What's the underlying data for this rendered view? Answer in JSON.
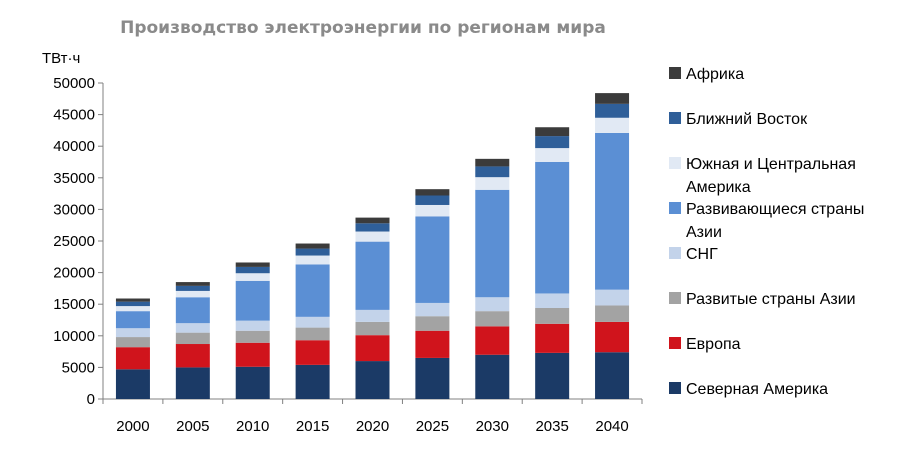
{
  "chart_data": {
    "type": "bar",
    "stacked": true,
    "title": "Производство электроэнергии по регионам мира",
    "ylabel": "ТВт·ч",
    "xlabel": "",
    "ylim": [
      0,
      50000
    ],
    "yticks": [
      0,
      5000,
      10000,
      15000,
      20000,
      25000,
      30000,
      35000,
      40000,
      45000,
      50000
    ],
    "grid": false,
    "legend_position": "right",
    "categories": [
      "2000",
      "2005",
      "2010",
      "2015",
      "2020",
      "2025",
      "2030",
      "2035",
      "2040"
    ],
    "series": [
      {
        "name": "Северная Америка",
        "color": "#1b3a66",
        "values": [
          4700,
          5000,
          5100,
          5400,
          6000,
          6500,
          7000,
          7300,
          7400
        ]
      },
      {
        "name": "Европа",
        "color": "#d0141c",
        "values": [
          3500,
          3700,
          3800,
          3900,
          4100,
          4300,
          4500,
          4600,
          4800
        ]
      },
      {
        "name": "Развитые страны Азии",
        "color": "#a3a3a3",
        "values": [
          1600,
          1800,
          1900,
          2000,
          2100,
          2300,
          2400,
          2500,
          2600
        ]
      },
      {
        "name": "СНГ",
        "color": "#c3d3ea",
        "values": [
          1400,
          1500,
          1600,
          1700,
          1900,
          2100,
          2200,
          2300,
          2500
        ]
      },
      {
        "name": "Развивающиеся страны Азии",
        "color": "#5b8fd4",
        "values": [
          2700,
          4100,
          6300,
          8300,
          10800,
          13700,
          17000,
          20800,
          24800
        ]
      },
      {
        "name": "Южная и Центральная Америка",
        "color": "#e1e9f4",
        "values": [
          800,
          1000,
          1200,
          1400,
          1600,
          1800,
          2000,
          2200,
          2400
        ]
      },
      {
        "name": "Ближний Восток",
        "color": "#2f5f99",
        "values": [
          700,
          800,
          1000,
          1100,
          1300,
          1500,
          1700,
          1900,
          2200
        ]
      },
      {
        "name": "Африка",
        "color": "#3b3b3b",
        "values": [
          500,
          600,
          700,
          800,
          900,
          1000,
          1200,
          1400,
          1700
        ]
      }
    ],
    "legend": [
      {
        "lines": [
          "Африка"
        ],
        "series": "Африка"
      },
      {
        "lines": [
          "Ближний Восток"
        ],
        "series": "Ближний Восток"
      },
      {
        "lines": [
          "Южная и Центральная",
          "Америка"
        ],
        "series": "Южная и Центральная Америка"
      },
      {
        "lines": [
          "Развивающиеся страны",
          "Азии"
        ],
        "series": "Развивающиеся страны Азии"
      },
      {
        "lines": [
          "СНГ"
        ],
        "series": "СНГ"
      },
      {
        "lines": [
          "Развитые страны Азии"
        ],
        "series": "Развитые страны Азии"
      },
      {
        "lines": [
          "Европа"
        ],
        "series": "Европа"
      },
      {
        "lines": [
          "Северная Америка"
        ],
        "series": "Северная Америка"
      }
    ]
  }
}
